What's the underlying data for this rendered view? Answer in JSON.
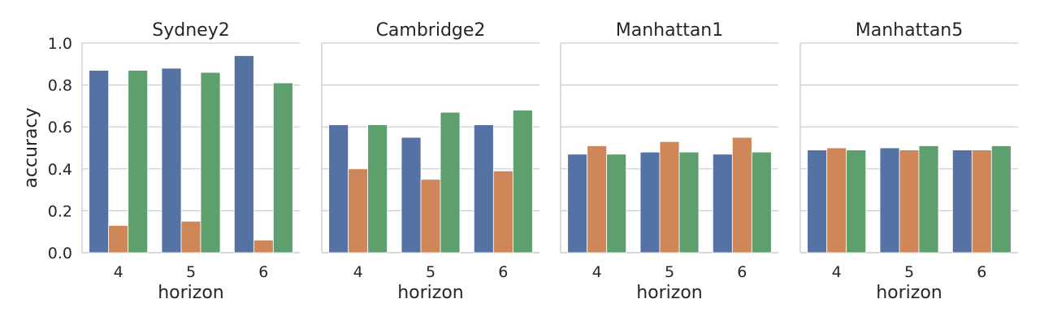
{
  "chart_data": {
    "type": "bar",
    "ylabel": "accuracy",
    "ylim": [
      0,
      1.0
    ],
    "yticks": [
      0.0,
      0.2,
      0.4,
      0.6,
      0.8,
      1.0
    ],
    "ytick_labels": [
      "0.0",
      "0.2",
      "0.4",
      "0.6",
      "0.8",
      "1.0"
    ],
    "grid": true,
    "legend": "none",
    "series_colors": [
      "#5572a4",
      "#cf8759",
      "#5ea06d"
    ],
    "panels": [
      {
        "title": "Sydney2",
        "xlabel": "horizon",
        "categories": [
          "4",
          "5",
          "6"
        ],
        "series": [
          {
            "values": [
              0.87,
              0.88,
              0.94
            ]
          },
          {
            "values": [
              0.13,
              0.15,
              0.06
            ]
          },
          {
            "values": [
              0.87,
              0.86,
              0.81
            ]
          }
        ]
      },
      {
        "title": "Cambridge2",
        "xlabel": "horizon",
        "categories": [
          "4",
          "5",
          "6"
        ],
        "series": [
          {
            "values": [
              0.61,
              0.55,
              0.61
            ]
          },
          {
            "values": [
              0.4,
              0.35,
              0.39
            ]
          },
          {
            "values": [
              0.61,
              0.67,
              0.68
            ]
          }
        ]
      },
      {
        "title": "Manhattan1",
        "xlabel": "horizon",
        "categories": [
          "4",
          "5",
          "6"
        ],
        "series": [
          {
            "values": [
              0.47,
              0.48,
              0.47
            ]
          },
          {
            "values": [
              0.51,
              0.53,
              0.55
            ]
          },
          {
            "values": [
              0.47,
              0.48,
              0.48
            ]
          }
        ]
      },
      {
        "title": "Manhattan5",
        "xlabel": "horizon",
        "categories": [
          "4",
          "5",
          "6"
        ],
        "series": [
          {
            "values": [
              0.49,
              0.5,
              0.49
            ]
          },
          {
            "values": [
              0.5,
              0.49,
              0.49
            ]
          },
          {
            "values": [
              0.49,
              0.51,
              0.51
            ]
          }
        ]
      }
    ]
  }
}
